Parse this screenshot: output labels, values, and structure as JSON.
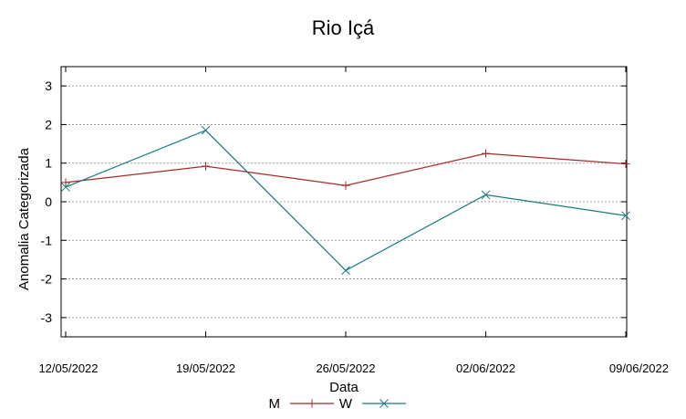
{
  "chart_data": {
    "type": "line",
    "title": "Rio Içá",
    "xlabel": "Data",
    "ylabel": "Anomalia Categorizada",
    "categories": [
      "12/05/2022",
      "19/05/2022",
      "26/05/2022",
      "02/06/2022",
      "09/06/2022"
    ],
    "ylim": [
      -3.5,
      3.5
    ],
    "yticks": [
      3,
      2,
      1,
      0,
      -1,
      -2,
      -3
    ],
    "ytick_labels": [
      "3",
      "2",
      "1",
      "0",
      "-1",
      "-2",
      "-3"
    ],
    "grid": true,
    "legend_position": "bottom-center",
    "series": [
      {
        "name": "M",
        "color": "#a52a2a",
        "marker": "plus",
        "values": [
          0.5,
          0.92,
          0.42,
          1.25,
          0.98
        ]
      },
      {
        "name": "W",
        "color": "#1a7a7f",
        "marker": "x",
        "values": [
          0.38,
          1.85,
          -1.78,
          0.18,
          -0.36
        ]
      }
    ]
  }
}
